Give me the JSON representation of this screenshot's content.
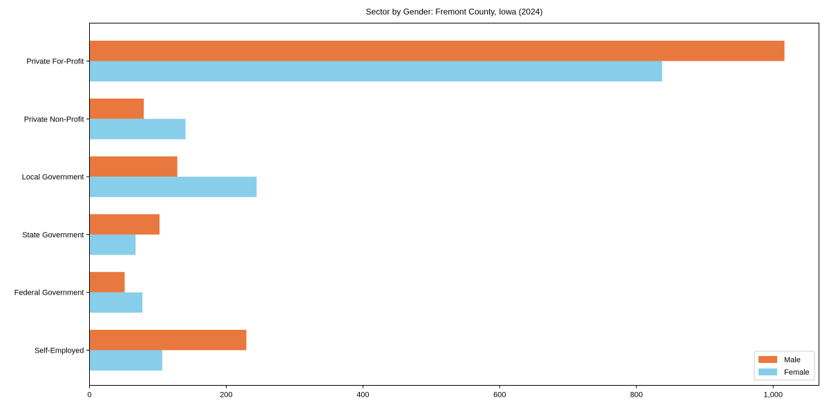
{
  "chart_data": {
    "type": "bar",
    "orientation": "horizontal",
    "title": "Sector by Gender: Fremont County, Iowa (2024)",
    "categories": [
      "Private For-Profit",
      "Private Non-Profit",
      "Local Government",
      "State Government",
      "Federal Government",
      "Self-Employed"
    ],
    "series": [
      {
        "name": "Male",
        "color": "#E8783D",
        "values": [
          1016,
          79,
          128,
          102,
          51,
          229
        ]
      },
      {
        "name": "Female",
        "color": "#87CEEB",
        "values": [
          837,
          140,
          244,
          67,
          77,
          106
        ]
      }
    ],
    "x_axis": {
      "ticks": [
        0,
        200,
        400,
        600,
        800,
        1000
      ],
      "tick_labels": [
        "0",
        "200",
        "400",
        "600",
        "800",
        "1,000"
      ],
      "range": [
        0,
        1067
      ]
    },
    "y_axis": {
      "label": ""
    },
    "xlabel": "",
    "ylabel": "",
    "grid": false,
    "legend": {
      "position": "lower right",
      "entries": [
        "Male",
        "Female"
      ]
    },
    "colors": {
      "male": "#E8783D",
      "female": "#87CEEB",
      "axis": "#000000",
      "legend_border": "#cccccc",
      "background": "#ffffff"
    }
  }
}
